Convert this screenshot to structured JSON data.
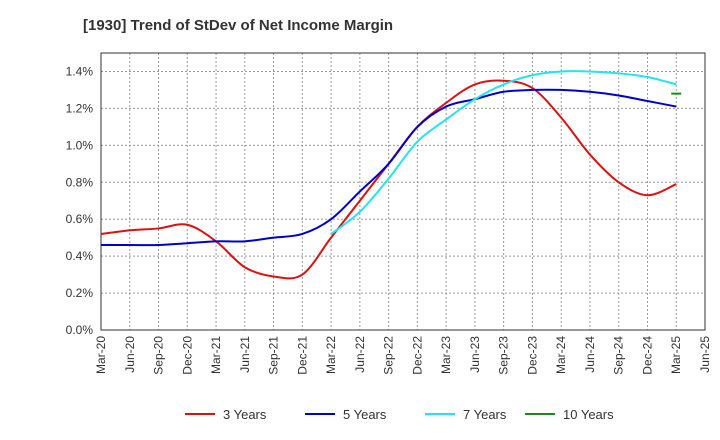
{
  "chart_data": {
    "type": "line",
    "title": "[1930]  Trend of StDev of Net Income Margin",
    "xlabel": "",
    "ylabel": "",
    "x_ticks": [
      "Mar-20",
      "Jun-20",
      "Sep-20",
      "Dec-20",
      "Mar-21",
      "Jun-21",
      "Sep-21",
      "Dec-21",
      "Mar-22",
      "Jun-22",
      "Sep-22",
      "Dec-22",
      "Mar-23",
      "Jun-23",
      "Sep-23",
      "Dec-23",
      "Mar-24",
      "Jun-24",
      "Sep-24",
      "Dec-24",
      "Mar-25",
      "Jun-25"
    ],
    "y_ticks": [
      "0.0%",
      "0.2%",
      "0.4%",
      "0.6%",
      "0.8%",
      "1.0%",
      "1.2%",
      "1.4%"
    ],
    "ylim": [
      0,
      1.5
    ],
    "grid": true,
    "legend_position": "bottom",
    "series": [
      {
        "name": "3 Years",
        "color": "#dd1111",
        "values": [
          0.52,
          0.54,
          0.55,
          0.57,
          0.48,
          0.34,
          0.29,
          0.3,
          0.5,
          0.7,
          0.9,
          1.1,
          1.23,
          1.33,
          1.35,
          1.31,
          1.15,
          0.95,
          0.8,
          0.73,
          0.79
        ]
      },
      {
        "name": "5 Years",
        "color": "#0000cc",
        "values": [
          0.46,
          0.46,
          0.46,
          0.47,
          0.48,
          0.48,
          0.5,
          0.52,
          0.6,
          0.75,
          0.9,
          1.1,
          1.21,
          1.25,
          1.29,
          1.3,
          1.3,
          1.29,
          1.27,
          1.24,
          1.21
        ]
      },
      {
        "name": "7 Years",
        "color": "#22e5ee",
        "values": [
          null,
          null,
          null,
          null,
          null,
          null,
          null,
          null,
          0.52,
          0.64,
          0.82,
          1.02,
          1.14,
          1.25,
          1.33,
          1.38,
          1.4,
          1.4,
          1.39,
          1.37,
          1.33
        ]
      },
      {
        "name": "10 Years",
        "color": "#1a8a1a",
        "values": [
          null,
          null,
          null,
          null,
          null,
          null,
          null,
          null,
          null,
          null,
          null,
          null,
          null,
          null,
          null,
          null,
          null,
          null,
          null,
          null,
          1.28
        ]
      }
    ]
  }
}
